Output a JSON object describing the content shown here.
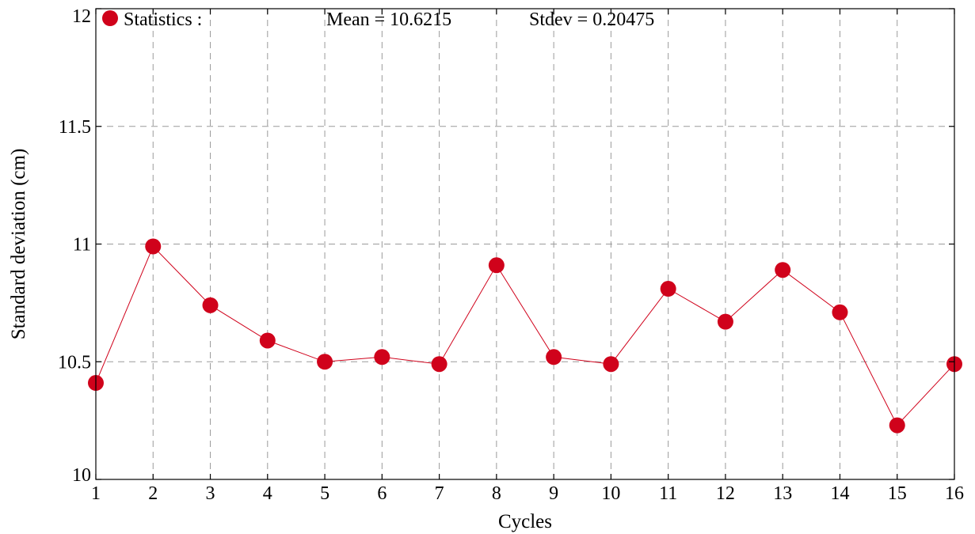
{
  "chart_data": {
    "type": "line",
    "xlabel": "Cycles",
    "ylabel": "Standard deviation (cm)",
    "xlim": [
      1,
      16
    ],
    "ylim": [
      10,
      12
    ],
    "x_ticks": [
      1,
      2,
      3,
      4,
      5,
      6,
      7,
      8,
      9,
      10,
      11,
      12,
      13,
      14,
      15,
      16
    ],
    "y_ticks": [
      10,
      10.5,
      11,
      11.5,
      12
    ],
    "y_tick_labels": [
      "10",
      "10.5",
      "11",
      "11.5",
      "12"
    ],
    "grid": true,
    "legend": {
      "placement": "top",
      "entries": [
        "Statistics :",
        "Mean = 10.6215",
        "Stdev = 0.20475"
      ]
    },
    "series": [
      {
        "color": "#d0021b",
        "marker": "circle",
        "x": [
          1,
          2,
          3,
          4,
          5,
          6,
          7,
          8,
          9,
          10,
          11,
          12,
          13,
          14,
          15,
          16
        ],
        "y": [
          10.41,
          10.99,
          10.74,
          10.59,
          10.5,
          10.52,
          10.49,
          10.91,
          10.52,
          10.49,
          10.81,
          10.67,
          10.89,
          10.71,
          10.23,
          10.49
        ]
      }
    ]
  }
}
